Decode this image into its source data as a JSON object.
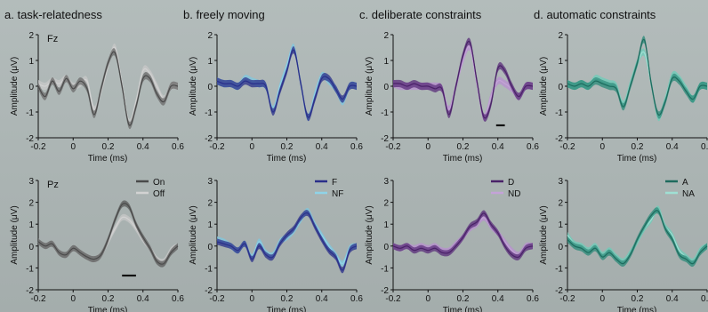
{
  "figure": {
    "xlabel": "Time (ms)",
    "ylabel": "Amplitude (μV)",
    "x_ticks": [
      "-0.2",
      "0",
      "0.2",
      "0.4",
      "0.6"
    ],
    "y_ticks": [
      "-2",
      "-1",
      "0",
      "1",
      "2"
    ],
    "y_ticks_bottom": [
      "-2",
      "-1",
      "0",
      "1",
      "2",
      "3"
    ]
  },
  "chart_data": [
    {
      "type": "line",
      "panel": "a",
      "row": "Fz",
      "title": "a. task-relatedness",
      "electrode": "Fz",
      "xlabel": "Time (ms)",
      "ylabel": "Amplitude (μV)",
      "xlim": [
        -0.2,
        0.6
      ],
      "ylim": [
        -2,
        2
      ],
      "x": [
        -0.2,
        -0.16,
        -0.12,
        -0.08,
        -0.04,
        0,
        0.04,
        0.08,
        0.12,
        0.16,
        0.2,
        0.24,
        0.28,
        0.32,
        0.36,
        0.4,
        0.44,
        0.48,
        0.52,
        0.56,
        0.6
      ],
      "series": [
        {
          "name": "On",
          "color": "#4a4a4a",
          "band_color": "#6b6b6b",
          "values": [
            0.0,
            -0.4,
            0.2,
            -0.2,
            0.3,
            -0.1,
            0.2,
            -0.1,
            -1.1,
            -0.1,
            0.9,
            1.3,
            0.0,
            -1.5,
            -0.8,
            0.3,
            0.3,
            -0.3,
            -0.6,
            0.0,
            0.0
          ]
        },
        {
          "name": "Off",
          "color": "#d2d2d2",
          "band_color": "#c8c8c8",
          "values": [
            0.1,
            0.0,
            0.2,
            0.1,
            0.3,
            0.0,
            0.1,
            0.2,
            -0.9,
            -0.2,
            0.8,
            1.5,
            0.1,
            -1.4,
            -0.6,
            0.6,
            0.5,
            0.0,
            -0.5,
            0.0,
            0.0
          ]
        }
      ],
      "significance_bar": null
    },
    {
      "type": "line",
      "panel": "b",
      "row": "Fz",
      "title": "b. freely moving",
      "xlabel": "Time (ms)",
      "ylabel": "Amplitude (μV)",
      "xlim": [
        -0.2,
        0.6
      ],
      "ylim": [
        -2,
        2
      ],
      "x": [
        -0.2,
        -0.16,
        -0.12,
        -0.08,
        -0.04,
        0,
        0.04,
        0.08,
        0.12,
        0.16,
        0.2,
        0.24,
        0.28,
        0.32,
        0.36,
        0.4,
        0.44,
        0.48,
        0.52,
        0.56,
        0.6
      ],
      "series": [
        {
          "name": "F",
          "color": "#2a2f8a",
          "band_color": "#2a2f8a",
          "values": [
            0.2,
            0.1,
            0.1,
            0.0,
            0.2,
            0.1,
            0.1,
            0.0,
            -1.0,
            -0.2,
            0.6,
            1.4,
            0.1,
            -1.2,
            -0.5,
            0.3,
            0.3,
            -0.1,
            -0.5,
            0.0,
            0.0
          ]
        },
        {
          "name": "NF",
          "color": "#8fd3e8",
          "band_color": "#7ec8e0",
          "values": [
            0.2,
            0.1,
            0.1,
            0.0,
            0.3,
            0.2,
            0.1,
            0.0,
            -0.9,
            0.0,
            0.8,
            1.5,
            0.1,
            -1.2,
            -0.3,
            0.4,
            0.2,
            -0.1,
            -0.6,
            0.0,
            0.0
          ]
        }
      ],
      "significance_bar": null
    },
    {
      "type": "line",
      "panel": "c",
      "row": "Fz",
      "title": "c. deliberate constraints",
      "xlabel": "Time (ms)",
      "ylabel": "Amplitude (μV)",
      "xlim": [
        -0.2,
        0.6
      ],
      "ylim": [
        -2,
        2
      ],
      "x": [
        -0.2,
        -0.16,
        -0.12,
        -0.08,
        -0.04,
        0,
        0.04,
        0.08,
        0.12,
        0.16,
        0.2,
        0.24,
        0.28,
        0.32,
        0.36,
        0.4,
        0.44,
        0.48,
        0.52,
        0.56,
        0.6
      ],
      "series": [
        {
          "name": "D",
          "color": "#4a2268",
          "band_color": "#5a2d7a",
          "values": [
            0.1,
            0.1,
            0.0,
            0.1,
            0.0,
            0.0,
            -0.1,
            -0.1,
            -1.1,
            0.0,
            1.2,
            1.7,
            0.2,
            -1.2,
            -0.7,
            0.7,
            0.6,
            0.0,
            -0.4,
            0.0,
            0.0
          ]
        },
        {
          "name": "ND",
          "color": "#c4a2d8",
          "band_color": "#b88fd0",
          "values": [
            0.1,
            0.0,
            0.0,
            0.0,
            0.0,
            0.0,
            0.0,
            -0.1,
            -0.9,
            0.0,
            1.0,
            1.5,
            0.1,
            -1.2,
            -0.4,
            0.2,
            0.1,
            -0.1,
            -0.4,
            0.0,
            0.0
          ]
        }
      ],
      "significance_bar": [
        0.39,
        0.44
      ]
    },
    {
      "type": "line",
      "panel": "d",
      "row": "Fz",
      "title": "d. automatic constraints",
      "xlabel": "Time (ms)",
      "ylabel": "Amplitude (μV)",
      "xlim": [
        -0.2,
        0.6
      ],
      "ylim": [
        -2,
        2
      ],
      "x": [
        -0.2,
        -0.16,
        -0.12,
        -0.08,
        -0.04,
        0,
        0.04,
        0.08,
        0.12,
        0.16,
        0.2,
        0.24,
        0.28,
        0.32,
        0.36,
        0.4,
        0.44,
        0.48,
        0.52,
        0.56,
        0.6
      ],
      "series": [
        {
          "name": "A",
          "color": "#1e6b5e",
          "band_color": "#2a8a78",
          "values": [
            0.1,
            0.0,
            0.1,
            0.0,
            0.2,
            0.1,
            0.0,
            -0.1,
            -0.8,
            0.0,
            0.9,
            1.8,
            0.1,
            -1.1,
            -0.6,
            0.3,
            0.2,
            -0.2,
            -0.5,
            0.0,
            0.0
          ]
        },
        {
          "name": "NA",
          "color": "#9fe0d4",
          "band_color": "#6ccdb9",
          "values": [
            0.1,
            0.0,
            0.1,
            0.0,
            0.3,
            0.2,
            0.1,
            0.0,
            -0.7,
            0.1,
            0.9,
            1.3,
            0.1,
            -1.2,
            -0.5,
            0.4,
            0.3,
            -0.1,
            -0.5,
            0.0,
            0.0
          ]
        }
      ],
      "significance_bar": null
    },
    {
      "type": "line",
      "panel": "a",
      "row": "Pz",
      "electrode": "Pz",
      "xlabel": "Time (ms)",
      "ylabel": "Amplitude (μV)",
      "xlim": [
        -0.2,
        0.6
      ],
      "ylim": [
        -2,
        3
      ],
      "x": [
        -0.2,
        -0.16,
        -0.12,
        -0.08,
        -0.04,
        0,
        0.04,
        0.08,
        0.12,
        0.16,
        0.2,
        0.24,
        0.28,
        0.32,
        0.36,
        0.4,
        0.44,
        0.48,
        0.52,
        0.56,
        0.6
      ],
      "series": [
        {
          "name": "On",
          "color": "#4a4a4a",
          "band_color": "#5a5a5a",
          "values": [
            0.2,
            0.0,
            0.1,
            -0.3,
            -0.4,
            -0.1,
            -0.3,
            -0.5,
            -0.6,
            -0.4,
            0.3,
            1.2,
            1.9,
            1.8,
            1.0,
            0.4,
            -0.1,
            -0.7,
            -0.8,
            -0.3,
            0.0
          ]
        },
        {
          "name": "Off",
          "color": "#d2d2d2",
          "band_color": "#c8c8c8",
          "values": [
            0.2,
            0.0,
            0.1,
            -0.3,
            -0.4,
            -0.1,
            -0.3,
            -0.5,
            -0.6,
            -0.4,
            0.2,
            0.8,
            1.3,
            1.2,
            0.8,
            0.3,
            -0.1,
            -0.6,
            -0.7,
            -0.2,
            0.0
          ]
        }
      ],
      "significance_bar": [
        0.28,
        0.36
      ]
    },
    {
      "type": "line",
      "panel": "b",
      "row": "Pz",
      "xlabel": "Time (ms)",
      "ylabel": "Amplitude (μV)",
      "xlim": [
        -0.2,
        0.6
      ],
      "ylim": [
        -2,
        3
      ],
      "x": [
        -0.2,
        -0.16,
        -0.12,
        -0.08,
        -0.04,
        0,
        0.04,
        0.08,
        0.12,
        0.16,
        0.2,
        0.24,
        0.28,
        0.32,
        0.36,
        0.4,
        0.44,
        0.48,
        0.52,
        0.56,
        0.6
      ],
      "series": [
        {
          "name": "F",
          "color": "#2a2f8a",
          "band_color": "#2a2f8a",
          "values": [
            0.2,
            0.1,
            0.0,
            -0.2,
            0.1,
            -0.6,
            0.0,
            -0.4,
            -0.5,
            0.1,
            0.5,
            0.8,
            1.3,
            1.5,
            0.9,
            0.3,
            -0.2,
            -0.5,
            -1.1,
            -0.2,
            0.0
          ]
        },
        {
          "name": "NF",
          "color": "#8fd3e8",
          "band_color": "#7ec8e0",
          "values": [
            0.3,
            0.2,
            0.0,
            -0.2,
            0.1,
            -0.5,
            0.2,
            -0.3,
            -0.4,
            0.2,
            0.4,
            0.7,
            1.2,
            1.6,
            1.0,
            0.5,
            0.0,
            -0.4,
            -0.8,
            -0.1,
            0.0
          ]
        }
      ],
      "significance_bar": null
    },
    {
      "type": "line",
      "panel": "c",
      "row": "Pz",
      "xlabel": "Time (ms)",
      "ylabel": "Amplitude (μV)",
      "xlim": [
        -0.2,
        0.6
      ],
      "ylim": [
        -2,
        3
      ],
      "x": [
        -0.2,
        -0.16,
        -0.12,
        -0.08,
        -0.04,
        0,
        0.04,
        0.08,
        0.12,
        0.16,
        0.2,
        0.24,
        0.28,
        0.32,
        0.36,
        0.4,
        0.44,
        0.48,
        0.52,
        0.56,
        0.6
      ],
      "series": [
        {
          "name": "D",
          "color": "#4a2268",
          "band_color": "#5a2d7a",
          "values": [
            0.0,
            -0.1,
            0.0,
            -0.2,
            -0.1,
            -0.2,
            -0.1,
            -0.3,
            -0.3,
            0.0,
            0.4,
            0.9,
            1.1,
            1.5,
            1.0,
            0.6,
            0.0,
            -0.4,
            -0.5,
            -0.1,
            0.0
          ]
        },
        {
          "name": "ND",
          "color": "#c4a2d8",
          "band_color": "#b88fd0",
          "values": [
            0.0,
            -0.1,
            0.0,
            -0.1,
            0.0,
            -0.1,
            0.0,
            -0.2,
            -0.2,
            0.1,
            0.4,
            0.8,
            1.0,
            1.3,
            0.9,
            0.6,
            0.2,
            -0.2,
            -0.4,
            0.0,
            0.0
          ]
        }
      ],
      "significance_bar": null
    },
    {
      "type": "line",
      "panel": "d",
      "row": "Pz",
      "xlabel": "Time (ms)",
      "ylabel": "Amplitude (μV)",
      "xlim": [
        -0.2,
        0.6
      ],
      "ylim": [
        -2,
        3
      ],
      "x": [
        -0.2,
        -0.16,
        -0.12,
        -0.08,
        -0.04,
        0,
        0.04,
        0.08,
        0.12,
        0.16,
        0.2,
        0.24,
        0.28,
        0.32,
        0.36,
        0.4,
        0.44,
        0.48,
        0.52,
        0.56,
        0.6
      ],
      "series": [
        {
          "name": "A",
          "color": "#1e6b5e",
          "band_color": "#2a8a78",
          "values": [
            0.3,
            0.0,
            -0.1,
            -0.3,
            -0.1,
            -0.5,
            -0.3,
            -0.6,
            -0.8,
            -0.4,
            0.3,
            0.9,
            1.4,
            1.6,
            0.8,
            0.3,
            -0.4,
            -0.6,
            -0.8,
            -0.3,
            0.0
          ]
        },
        {
          "name": "NA",
          "color": "#9fe0d4",
          "band_color": "#6ccdb9",
          "values": [
            0.5,
            0.1,
            0.0,
            -0.2,
            0.0,
            -0.4,
            -0.2,
            -0.5,
            -0.7,
            -0.3,
            0.2,
            0.8,
            1.2,
            1.7,
            0.9,
            0.5,
            -0.2,
            -0.5,
            -0.7,
            -0.2,
            0.0
          ]
        }
      ],
      "significance_bar": null
    }
  ]
}
